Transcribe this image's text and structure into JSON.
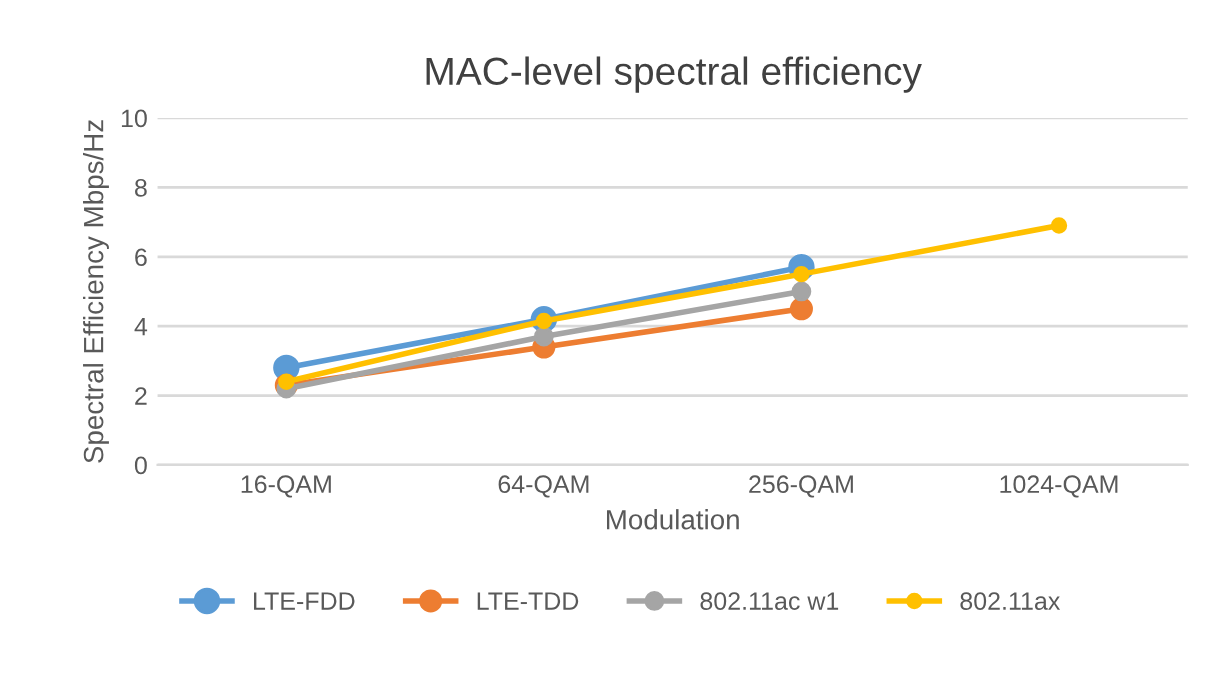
{
  "chart_data": {
    "type": "line",
    "title": "MAC-level spectral efficiency",
    "xlabel": "Modulation",
    "ylabel": "Spectral Efficiency Mbps/Hz",
    "categories": [
      "16-QAM",
      "64-QAM",
      "256-QAM",
      "1024-QAM"
    ],
    "series": [
      {
        "name": "LTE-FDD",
        "color": "#5b9bd5",
        "values": [
          2.8,
          4.2,
          5.7,
          null
        ]
      },
      {
        "name": "LTE-TDD",
        "color": "#ed7d31",
        "values": [
          2.3,
          3.4,
          4.5,
          null
        ]
      },
      {
        "name": "802.11ac w1",
        "color": "#a5a5a5",
        "values": [
          2.2,
          3.7,
          5.0,
          null
        ]
      },
      {
        "name": "802.11ax",
        "color": "#ffc000",
        "values": [
          2.4,
          4.15,
          5.5,
          6.9
        ]
      }
    ],
    "ylim": [
      0,
      10
    ],
    "yticks": [
      0,
      2,
      4,
      6,
      8,
      10
    ],
    "grid": "y",
    "legend": "bottom",
    "marker": "circle",
    "line_style": "solid"
  }
}
